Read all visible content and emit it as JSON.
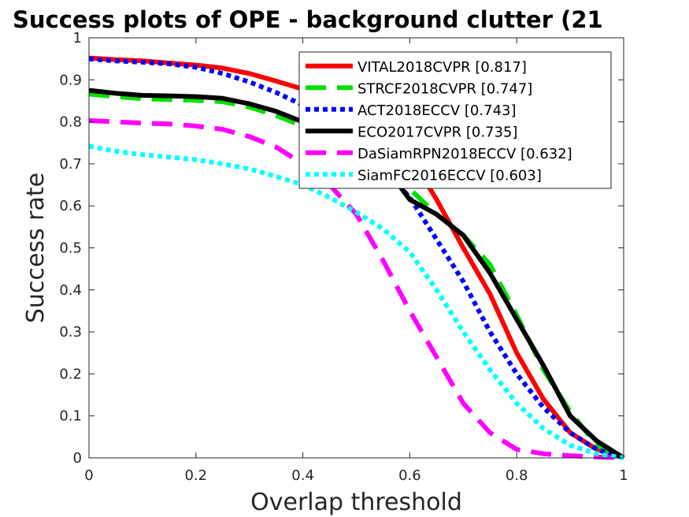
{
  "chart_data": {
    "type": "line",
    "title": "Success plots of OPE - background clutter (21",
    "xlabel": "Overlap threshold",
    "ylabel": "Success rate",
    "xlim": [
      0,
      1
    ],
    "ylim": [
      0,
      1
    ],
    "xticks": [
      0,
      0.2,
      0.4,
      0.6,
      0.8,
      1
    ],
    "xtick_labels": [
      "0",
      "0.2",
      "0.4",
      "0.6",
      "0.8",
      "1"
    ],
    "yticks": [
      0,
      0.1,
      0.2,
      0.3,
      0.4,
      0.5,
      0.6,
      0.7,
      0.8,
      0.9,
      1
    ],
    "ytick_labels": [
      "0",
      "0.1",
      "0.2",
      "0.3",
      "0.4",
      "0.5",
      "0.6",
      "0.7",
      "0.8",
      "0.9",
      "1"
    ],
    "grid": false,
    "legend_position": "top-right",
    "x": [
      0,
      0.05,
      0.1,
      0.15,
      0.2,
      0.25,
      0.3,
      0.35,
      0.4,
      0.45,
      0.5,
      0.55,
      0.6,
      0.65,
      0.7,
      0.75,
      0.8,
      0.85,
      0.9,
      0.95,
      1
    ],
    "series": [
      {
        "name": "VITAL2018CVPR [0.817]",
        "color": "#ff0000",
        "style": "solid",
        "values": [
          0.952,
          0.948,
          0.945,
          0.94,
          0.935,
          0.928,
          0.915,
          0.897,
          0.878,
          0.862,
          0.845,
          0.8,
          0.72,
          0.615,
          0.5,
          0.39,
          0.25,
          0.14,
          0.06,
          0.02,
          0.0
        ]
      },
      {
        "name": "STRCF2018CVPR [0.747]",
        "color": "#00e000",
        "style": "dashed",
        "values": [
          0.866,
          0.86,
          0.855,
          0.853,
          0.851,
          0.848,
          0.835,
          0.815,
          0.79,
          0.76,
          0.72,
          0.68,
          0.64,
          0.58,
          0.53,
          0.46,
          0.34,
          0.21,
          0.11,
          0.03,
          0.0
        ]
      },
      {
        "name": "ACT2018ECCV [0.743]",
        "color": "#0000ff",
        "style": "dotted",
        "values": [
          0.95,
          0.945,
          0.942,
          0.938,
          0.93,
          0.915,
          0.895,
          0.87,
          0.84,
          0.8,
          0.74,
          0.69,
          0.62,
          0.52,
          0.42,
          0.3,
          0.2,
          0.12,
          0.06,
          0.02,
          0.0
        ]
      },
      {
        "name": "ECO2017CVPR [0.735]",
        "color": "#000000",
        "style": "solid",
        "values": [
          0.875,
          0.868,
          0.863,
          0.862,
          0.86,
          0.856,
          0.843,
          0.825,
          0.8,
          0.765,
          0.73,
          0.7,
          0.615,
          0.58,
          0.53,
          0.44,
          0.33,
          0.22,
          0.1,
          0.04,
          0.0
        ]
      },
      {
        "name": "DaSiamRPN2018ECCV [0.632]",
        "color": "#ff00ff",
        "style": "dashed",
        "values": [
          0.803,
          0.8,
          0.797,
          0.795,
          0.79,
          0.782,
          0.765,
          0.74,
          0.7,
          0.65,
          0.58,
          0.47,
          0.35,
          0.24,
          0.13,
          0.06,
          0.02,
          0.01,
          0.005,
          0.002,
          0.0
        ]
      },
      {
        "name": "SiamFC2016ECCV [0.603]",
        "color": "#00ffff",
        "style": "dotted",
        "values": [
          0.742,
          0.73,
          0.722,
          0.716,
          0.71,
          0.7,
          0.688,
          0.67,
          0.65,
          0.62,
          0.585,
          0.545,
          0.49,
          0.4,
          0.3,
          0.21,
          0.13,
          0.07,
          0.03,
          0.01,
          0.0
        ]
      }
    ]
  }
}
